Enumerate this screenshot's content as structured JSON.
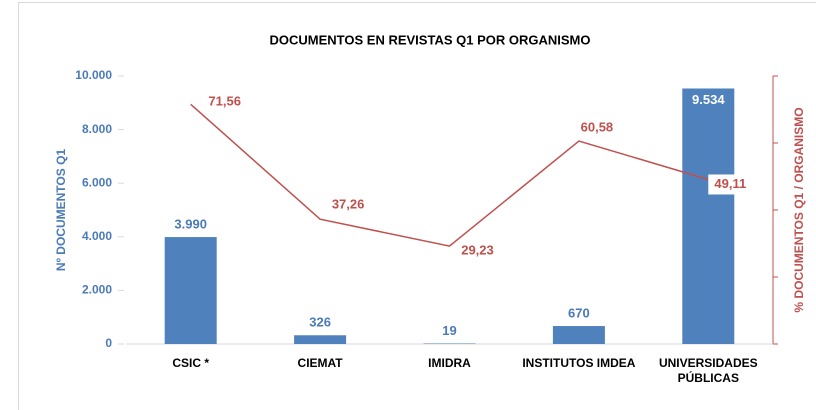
{
  "chart_data": {
    "type": "bar+line",
    "title": "DOCUMENTOS EN REVISTAS Q1 POR ORGANISMO",
    "y_label": "Nº DOCUMENTOS Q1",
    "y2_label": "% DOCUMENTOS Q1 / ORGANISMO",
    "categories": [
      "CSIC *",
      "CIEMAT",
      "IMIDRA",
      "INSTITUTOS IMDEA",
      "UNIVERSIDADES PÚBLICAS"
    ],
    "series": [
      {
        "name": "Nº documentos Q1",
        "type": "bar",
        "color": "#4f81bd",
        "values": [
          3990,
          326,
          19,
          670,
          9534
        ],
        "value_labels": [
          "3.990",
          "326",
          "19",
          "670",
          "9.534"
        ]
      },
      {
        "name": "% documentos Q1 / organismo",
        "type": "line",
        "axis": "y2",
        "color": "#c0504d",
        "values": [
          71.56,
          37.26,
          29.23,
          60.58,
          49.11
        ],
        "value_labels": [
          "71,56",
          "37,26",
          "29,23",
          "60,58",
          "49,11"
        ]
      }
    ],
    "ylim": [
      0,
      10000
    ],
    "yticks": [
      0,
      {
        "value": 2000,
        "label": "2.000"
      },
      {
        "value": 4000,
        "label": "4.000"
      },
      {
        "value": 6000,
        "label": "6.000"
      },
      {
        "value": 8000,
        "label": "8.000"
      },
      {
        "value": 10000,
        "label": "10.000"
      }
    ],
    "y2lim": [
      0,
      80
    ],
    "y2ticks": [
      0,
      20,
      40,
      60,
      80
    ],
    "legend": false
  }
}
